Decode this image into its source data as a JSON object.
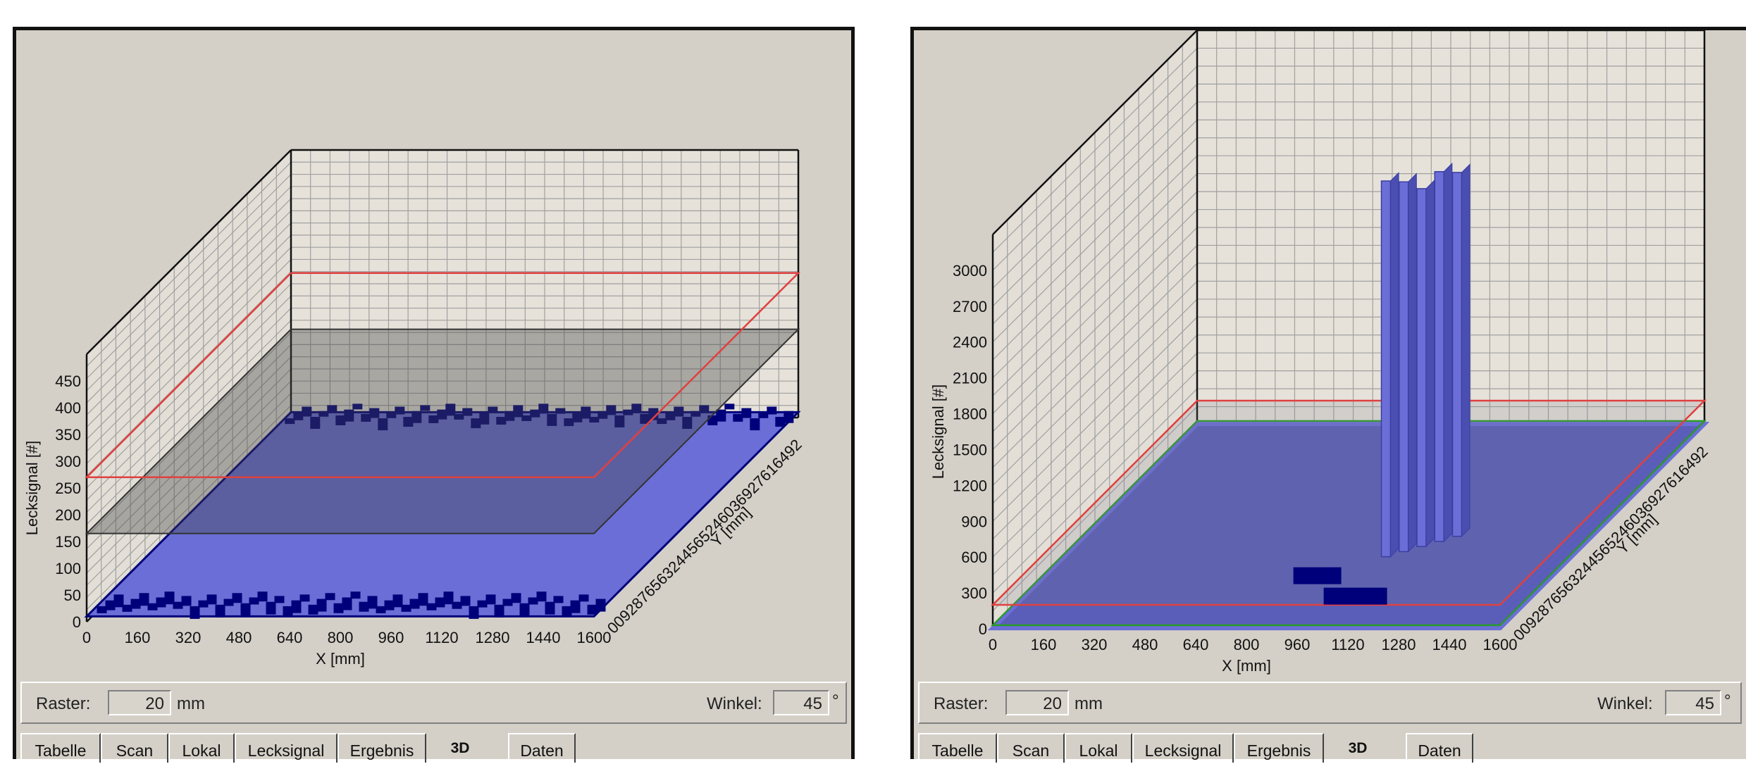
{
  "panels": [
    {
      "controls": {
        "raster_label": "Raster:",
        "raster_value": "20",
        "raster_unit": "mm",
        "winkel_label": "Winkel:",
        "winkel_value": "45",
        "winkel_unit": "°"
      },
      "tabs": [
        "Tabelle",
        "Scan",
        "Lokal",
        "Lecksignal",
        "Ergebnis",
        "3D",
        "Daten"
      ],
      "active_tab": "3D"
    },
    {
      "controls": {
        "raster_label": "Raster:",
        "raster_value": "20",
        "raster_unit": "mm",
        "winkel_label": "Winkel:",
        "winkel_value": "45",
        "winkel_unit": "°"
      },
      "tabs": [
        "Tabelle",
        "Scan",
        "Lokal",
        "Lecksignal",
        "Ergebnis",
        "3D",
        "Daten"
      ],
      "active_tab": "3D"
    }
  ],
  "colors": {
    "bar_fill": "#6a6ed6",
    "bar_dark": "#00007a",
    "threshold_red": "#e04040",
    "threshold_green": "#2a9a2a",
    "grid": "#a0a0a0",
    "panel_bg": "#d4d0c8"
  },
  "chart_data": [
    {
      "type": "3d-bar",
      "zlabel": "Lecksignal [#]",
      "xlabel": "X [mm]",
      "ylabel": "Y [mm]",
      "z_ticks": [
        "0",
        "50",
        "100",
        "150",
        "200",
        "250",
        "300",
        "350",
        "400",
        "450"
      ],
      "x_ticks": [
        "0",
        "160",
        "320",
        "480",
        "640",
        "800",
        "960",
        "1120",
        "1280",
        "1440",
        "1600"
      ],
      "y_ticks_text": "0092876563244565246036927616492",
      "zlim": [
        0,
        500
      ],
      "xlim": [
        0,
        1600
      ],
      "thresholds": [
        {
          "color": "red",
          "value": 270
        },
        {
          "color": "gray",
          "value": 165
        }
      ],
      "surface_level": 10,
      "description_values": {
        "edge_peaks_max": 30
      }
    },
    {
      "type": "3d-bar",
      "zlabel": "Lecksignal [#]",
      "xlabel": "X [mm]",
      "ylabel": "Y [mm]",
      "z_ticks": [
        "0",
        "300",
        "600",
        "900",
        "1200",
        "1500",
        "1800",
        "2100",
        "2400",
        "2700",
        "3000"
      ],
      "x_ticks": [
        "0",
        "160",
        "320",
        "480",
        "640",
        "800",
        "960",
        "1120",
        "1280",
        "1440",
        "1600"
      ],
      "y_ticks_text": "0092876563244565246036927616492",
      "zlim": [
        0,
        3300
      ],
      "xlim": [
        0,
        1600
      ],
      "thresholds": [
        {
          "color": "red",
          "value": 200
        },
        {
          "color": "green",
          "value": 30
        }
      ],
      "surface_level": 5,
      "peaks": [
        {
          "x": 1000,
          "y": 1200,
          "value": 3150
        },
        {
          "x": 1040,
          "y": 1150,
          "value": 3100
        },
        {
          "x": 1080,
          "y": 1100,
          "value": 3000
        },
        {
          "x": 1120,
          "y": 1050,
          "value": 3100
        },
        {
          "x": 1160,
          "y": 1000,
          "value": 3050
        }
      ]
    }
  ]
}
